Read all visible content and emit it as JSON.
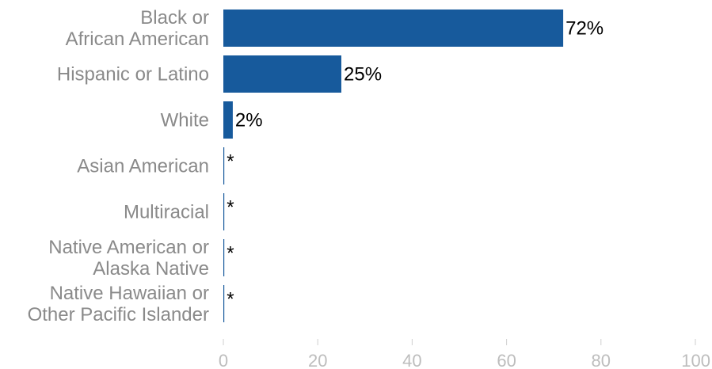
{
  "chart_data": {
    "type": "bar",
    "orientation": "horizontal",
    "categories": [
      [
        "Black or",
        "African American"
      ],
      [
        "Hispanic or Latino"
      ],
      [
        "White"
      ],
      [
        "Asian American"
      ],
      [
        "Multiracial"
      ],
      [
        "Native American or",
        "Alaska Native"
      ],
      [
        "Native Hawaiian or",
        "Other Pacific Islander"
      ]
    ],
    "values": [
      72,
      25,
      2,
      0.2,
      0.2,
      0.2,
      0.2
    ],
    "value_labels": [
      "72%",
      "25%",
      "2%",
      "*",
      "*",
      "*",
      "*"
    ],
    "xlim": [
      0,
      100
    ],
    "xticks": [
      0,
      20,
      40,
      60,
      80,
      100
    ],
    "xtick_labels": [
      "0",
      "20",
      "40",
      "60",
      "80",
      "100"
    ],
    "grid": false,
    "bar_color": "#175a9c",
    "title": "",
    "xlabel": "",
    "ylabel": ""
  }
}
